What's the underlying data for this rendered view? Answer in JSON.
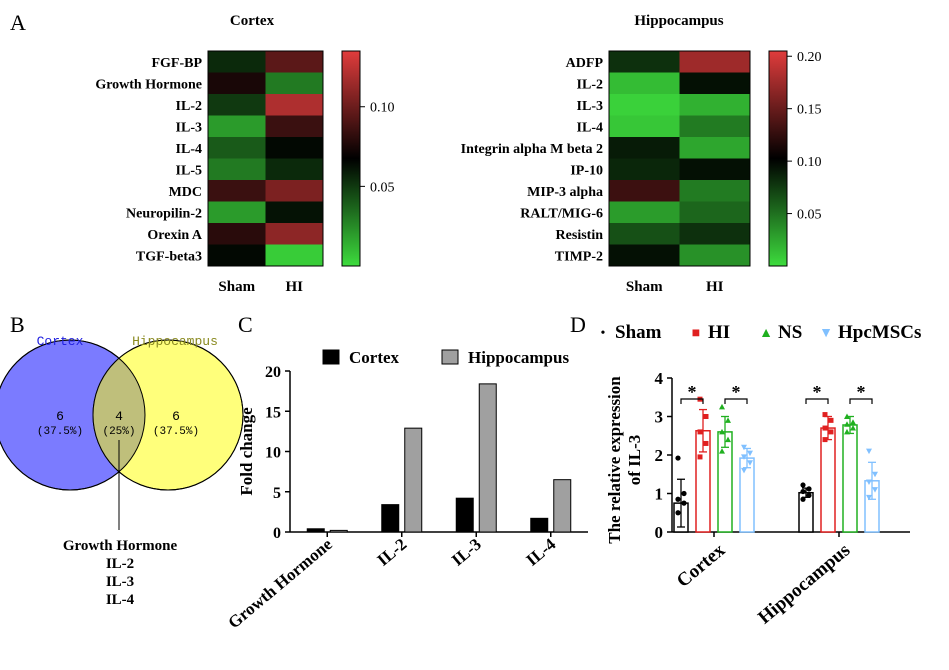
{
  "panels": [
    {
      "letter": "A"
    },
    {
      "letter": "B"
    },
    {
      "letter": "C"
    },
    {
      "letter": "D"
    }
  ],
  "chart_data": [
    {
      "type": "heatmap",
      "title": "Cortex",
      "columns": [
        "Sham",
        "HI"
      ],
      "rows": [
        "FGF-BP",
        "Growth Hormone",
        "IL-2",
        "IL-3",
        "IL-4",
        "IL-5",
        "MDC",
        "Neuropilin-2",
        "Orexin A",
        "TGF-beta3"
      ],
      "values": [
        [
          0.055,
          0.095
        ],
        [
          0.075,
          0.03
        ],
        [
          0.05,
          0.12
        ],
        [
          0.02,
          0.085
        ],
        [
          0.04,
          0.065
        ],
        [
          0.03,
          0.055
        ],
        [
          0.085,
          0.105
        ],
        [
          0.02,
          0.062
        ],
        [
          0.08,
          0.11
        ],
        [
          0.065,
          0.005
        ]
      ],
      "colorbar": {
        "min": 0.0,
        "max": 0.135,
        "ticks": [
          0.05,
          0.1
        ],
        "tick_labels": [
          "0.05",
          "0.10"
        ],
        "low_color": "#3ddc3d",
        "mid_color": "#000000",
        "high_color": "#e03c3c"
      }
    },
    {
      "type": "heatmap",
      "title": "Hippocampus",
      "columns": [
        "Sham",
        "HI"
      ],
      "rows": [
        "ADFP",
        "IL-2",
        "IL-3",
        "IL-4",
        "Integrin alpha M beta 2",
        "IP-10",
        "MIP-3 alpha",
        "RALT/MIG-6",
        "Resistin",
        "TIMP-2"
      ],
      "values": [
        [
          0.08,
          0.175
        ],
        [
          0.015,
          0.095
        ],
        [
          0.005,
          0.02
        ],
        [
          0.01,
          0.045
        ],
        [
          0.09,
          0.025
        ],
        [
          0.085,
          0.095
        ],
        [
          0.13,
          0.045
        ],
        [
          0.03,
          0.055
        ],
        [
          0.065,
          0.08
        ],
        [
          0.095,
          0.035
        ]
      ],
      "colorbar": {
        "min": 0.0,
        "max": 0.205,
        "ticks": [
          0.05,
          0.1,
          0.15,
          0.2
        ],
        "tick_labels": [
          "0.05",
          "0.10",
          "0.15",
          "0.20"
        ],
        "low_color": "#3ddc3d",
        "mid_color": "#000000",
        "high_color": "#e03c3c"
      }
    },
    {
      "type": "venn",
      "sets": [
        {
          "name": "Cortex",
          "count": "6",
          "pct": "(37.5%)",
          "color": "#7b7bff",
          "label_color": "#2020e0"
        },
        {
          "name": "Hippocampus",
          "count": "6",
          "pct": "(37.5%)",
          "color": "#ffff7b",
          "label_color": "#8a8a20"
        }
      ],
      "intersection": {
        "count": "4",
        "pct": "(25%)",
        "color": "#bfbf7b",
        "members": [
          "Growth Hormone",
          "IL-2",
          "IL-3",
          "IL-4"
        ]
      }
    },
    {
      "type": "bar",
      "ylabel": "Fold change",
      "ylim": [
        0,
        20
      ],
      "yticks": [
        0,
        5,
        10,
        15,
        20
      ],
      "categories": [
        "Growth Hormone",
        "IL-2",
        "IL-3",
        "IL-4"
      ],
      "series": [
        {
          "name": "Cortex",
          "color": "#000000",
          "values": [
            0.4,
            3.4,
            4.2,
            1.7
          ]
        },
        {
          "name": "Hippocampus",
          "color": "#a0a0a0",
          "values": [
            0.2,
            12.9,
            18.4,
            6.5
          ]
        }
      ],
      "legend": "top"
    },
    {
      "type": "bar",
      "ylabel": "The relative expression of IL-3",
      "ylim": [
        0,
        4
      ],
      "yticks": [
        0,
        1,
        2,
        3,
        4
      ],
      "categories": [
        "Cortex",
        "Hippocampus"
      ],
      "series": [
        {
          "name": "Sham",
          "color": "#000000",
          "marker": "•",
          "values": [
            0.75,
            1.02
          ],
          "errors": [
            0.62,
            0.12
          ],
          "points": [
            [
              0.5,
              0.75,
              0.85,
              1.0,
              1.92
            ],
            [
              0.85,
              0.95,
              1.05,
              1.12,
              1.22
            ]
          ]
        },
        {
          "name": "HI",
          "color": "#e02020",
          "marker": "■",
          "values": [
            2.63,
            2.7
          ],
          "errors": [
            0.55,
            0.3
          ],
          "points": [
            [
              1.95,
              2.3,
              2.6,
              3.0,
              3.45
            ],
            [
              2.4,
              2.6,
              2.7,
              2.9,
              3.05
            ]
          ]
        },
        {
          "name": "NS",
          "color": "#20b020",
          "marker": "▲",
          "values": [
            2.6,
            2.78
          ],
          "errors": [
            0.4,
            0.22
          ],
          "points": [
            [
              2.1,
              2.4,
              2.6,
              2.9,
              3.25
            ],
            [
              2.6,
              2.7,
              2.8,
              2.85,
              3.0
            ]
          ]
        },
        {
          "name": "HpcMSCs",
          "color": "#80c0ff",
          "marker": "▼",
          "values": [
            1.92,
            1.33
          ],
          "errors": [
            0.25,
            0.48
          ],
          "points": [
            [
              1.6,
              1.8,
              1.95,
              2.05,
              2.2
            ],
            [
              0.9,
              1.1,
              1.3,
              1.5,
              2.1
            ]
          ]
        }
      ],
      "significance": [
        {
          "group": 0,
          "from": 0,
          "to": 1,
          "label": "*"
        },
        {
          "group": 0,
          "from": 2,
          "to": 3,
          "label": "*"
        },
        {
          "group": 1,
          "from": 0,
          "to": 1,
          "label": "*"
        },
        {
          "group": 1,
          "from": 2,
          "to": 3,
          "label": "*"
        }
      ],
      "legend": "top"
    }
  ]
}
